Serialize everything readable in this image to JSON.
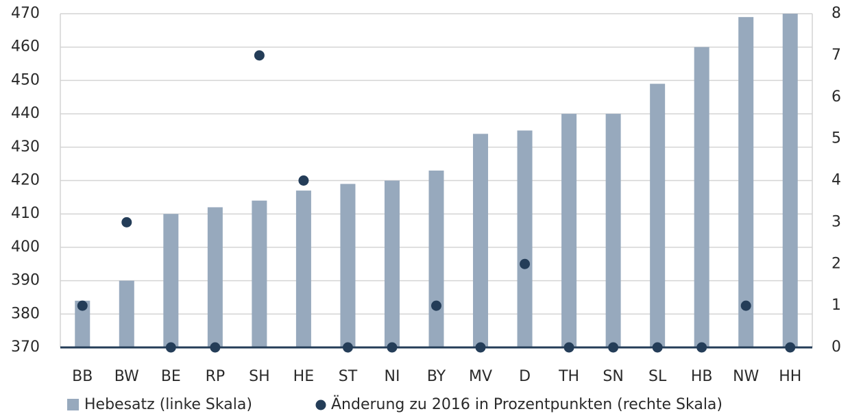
{
  "chart_data": {
    "type": "bar",
    "categories": [
      "BB",
      "BW",
      "BE",
      "RP",
      "SH",
      "HE",
      "ST",
      "NI",
      "BY",
      "MV",
      "D",
      "TH",
      "SN",
      "SL",
      "HB",
      "NW",
      "HH"
    ],
    "series": [
      {
        "name": "Hebesatz (linke Skala)",
        "type": "bar",
        "color": "#97a9bd",
        "values": [
          384,
          390,
          410,
          412,
          414,
          417,
          419,
          420,
          423,
          434,
          435,
          440,
          440,
          449,
          460,
          469,
          470
        ]
      },
      {
        "name": "Änderung zu 2016 in Prozentpunkten (rechte Skala)",
        "type": "scatter",
        "axis": "y2",
        "color": "#243d58",
        "values": [
          1,
          3,
          0,
          0,
          7,
          4,
          0,
          0,
          1,
          0,
          2,
          0,
          0,
          0,
          0,
          1,
          0
        ]
      }
    ],
    "ylim": [
      370,
      470
    ],
    "yticks": [
      370,
      380,
      390,
      400,
      410,
      420,
      430,
      440,
      450,
      460,
      470
    ],
    "y2lim": [
      0,
      8
    ],
    "y2ticks": [
      0,
      1,
      2,
      3,
      4,
      5,
      6,
      7,
      8
    ],
    "grid": true,
    "legend": "bottom"
  }
}
